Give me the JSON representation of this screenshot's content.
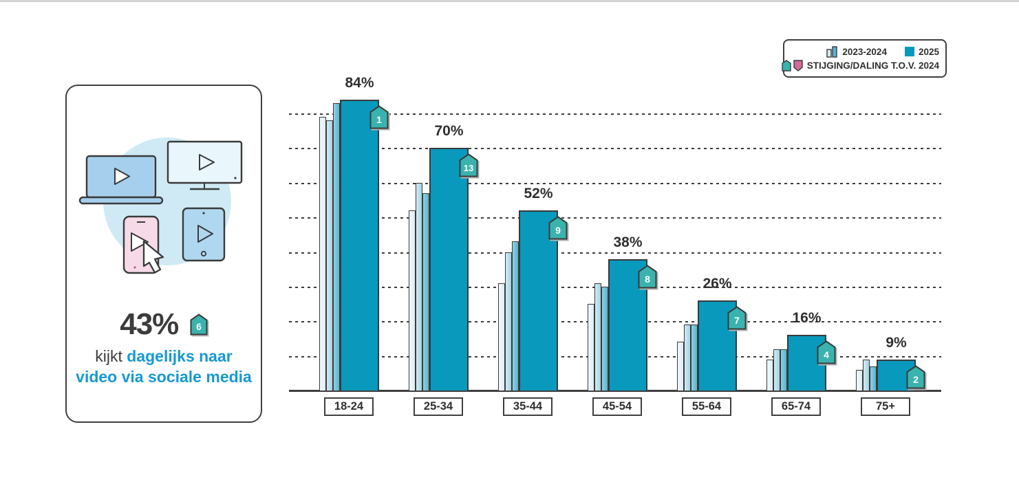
{
  "legend": {
    "history_label": "2023-2024",
    "current_label": "2025",
    "change_label": "STIJGING/DALING T.O.V. 2024"
  },
  "stat_card": {
    "value": "43%",
    "change_badge": "6",
    "line1_regular": "kijkt",
    "line1_bold": "dagelijks naar",
    "line2_bold": "video via sociale media",
    "illustration_icons": [
      "laptop",
      "tv-screen",
      "smartphone",
      "tablet",
      "play-button",
      "hand-cursor"
    ]
  },
  "colors": {
    "bar_2025": "#0999bc",
    "history_bar_fills_light": [
      "#f1f8fb",
      "#d4eaf3",
      "#93cfe1"
    ],
    "history_bar_fills_dark": [
      "#ddeef6",
      "#a0d4e6",
      "#55b5d3"
    ],
    "outline": "#3a3a3a",
    "badge_rise": "#3ab3ae",
    "badge_fall": "#d2699f",
    "accent_blue": "#1799d4",
    "text_dark": "#3b3b3b",
    "grid_color": "#3a3a3a",
    "illustration_circle": "#cfeaf4",
    "illustration_laptop": "#a5cfec",
    "illustration_tv": "#e9f6fb",
    "illustration_tablet": "#b0d7f0",
    "illustration_phone": "#f6dae7"
  },
  "chart_data": {
    "type": "bar",
    "title": "",
    "categories": [
      "18-24",
      "25-34",
      "35-44",
      "45-54",
      "55-64",
      "65-74",
      "75+"
    ],
    "series": [
      {
        "name": "2023-2024",
        "role": "history-thin-bars",
        "values": [
          [
            79,
            78,
            83
          ],
          [
            52,
            60,
            57
          ],
          [
            31,
            40,
            43
          ],
          [
            25,
            31,
            30
          ],
          [
            14,
            19,
            19
          ],
          [
            9,
            12,
            12
          ],
          [
            6,
            9,
            7
          ]
        ]
      },
      {
        "name": "2025",
        "role": "current-wide-bars",
        "values": [
          84,
          70,
          52,
          38,
          26,
          16,
          9
        ]
      }
    ],
    "value_labels": [
      "84%",
      "70%",
      "52%",
      "38%",
      "26%",
      "16%",
      "9%"
    ],
    "change_vs_2024": [
      1,
      13,
      9,
      8,
      7,
      4,
      2
    ],
    "change_direction": [
      "rise",
      "rise",
      "rise",
      "rise",
      "rise",
      "rise",
      "rise"
    ],
    "ylim": [
      0,
      90
    ],
    "gridlines": [
      10,
      20,
      30,
      40,
      50,
      60,
      70,
      80
    ],
    "grid_style": "horizontal-dashed",
    "legend_position": "top-right"
  }
}
